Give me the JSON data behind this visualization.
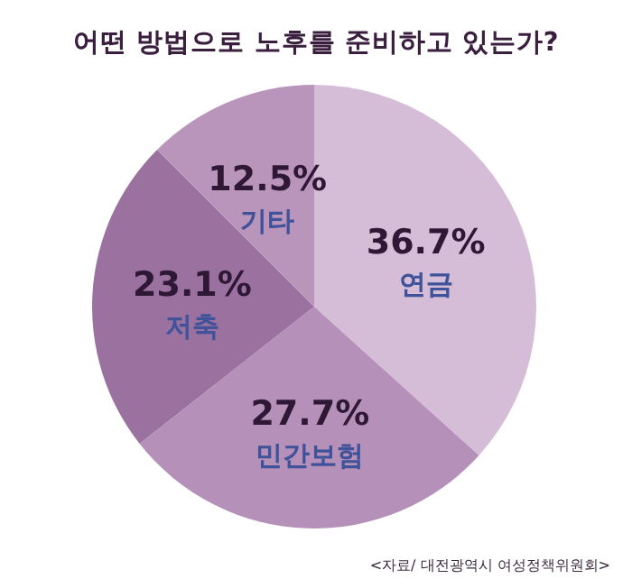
{
  "chart_data": {
    "type": "pie",
    "title": "어떤 방법으로 노후를 준비하고 있는가?",
    "categories": [
      "연금",
      "민간보험",
      "저축",
      "기타"
    ],
    "values": [
      36.7,
      27.7,
      23.1,
      12.5
    ],
    "colors": [
      "#d6bdd7",
      "#b591b9",
      "#9b729f",
      "#b995bb"
    ],
    "value_labels": [
      "36.7%",
      "27.7%",
      "23.1%",
      "12.5%"
    ],
    "annotations": [
      "<자료/ 대전광역시 여성정책위원회>"
    ]
  }
}
